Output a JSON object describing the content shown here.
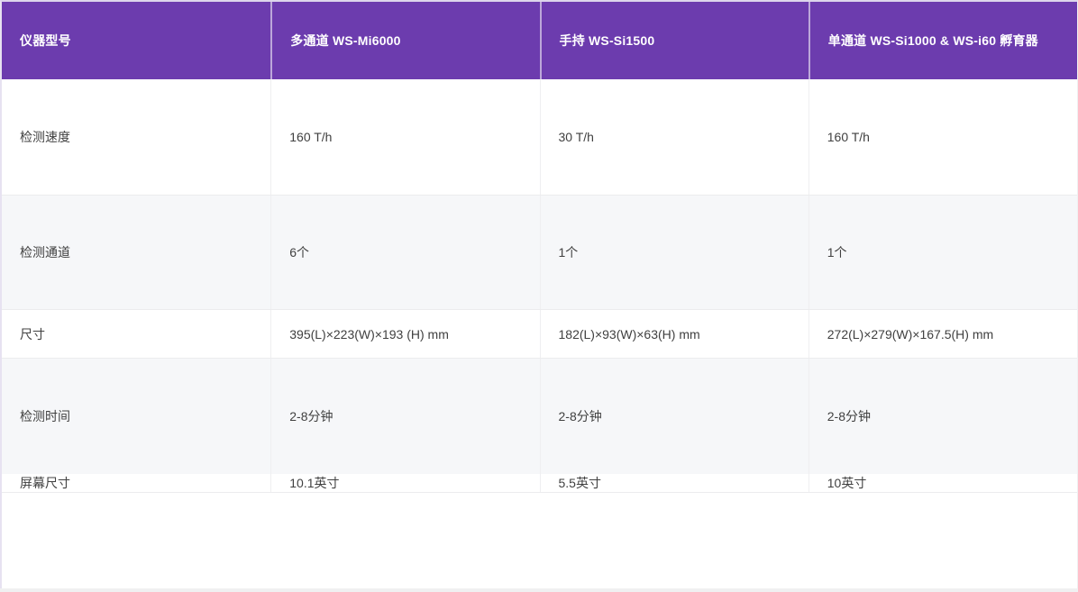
{
  "table": {
    "headers": [
      "仪器型号",
      "多通道 WS-Mi6000",
      "手持 WS-Si1500",
      "单通道 WS-Si1000 & WS-i60 孵育器"
    ],
    "rows": [
      {
        "label": "检测速度",
        "values": [
          "160 T/h",
          "30 T/h",
          "160 T/h"
        ]
      },
      {
        "label": "检测通道",
        "values": [
          "6个",
          "1个",
          "1个"
        ]
      },
      {
        "label": "尺寸",
        "values": [
          "395(L)×223(W)×193 (H) mm",
          "182(L)×93(W)×63(H) mm",
          "272(L)×279(W)×167.5(H) mm"
        ]
      },
      {
        "label": "检测时间",
        "values": [
          "2-8分钟",
          "2-8分钟",
          "2-8分钟"
        ]
      },
      {
        "label": "屏幕尺寸",
        "values": [
          "10.1英寸",
          "5.5英寸",
          "10英寸"
        ]
      }
    ]
  },
  "colors": {
    "header_bg": "#6c3cae",
    "header_text": "#ffffff",
    "body_text": "#404040",
    "alt_row_bg": "#f6f7f9",
    "row_border": "#ececee"
  }
}
